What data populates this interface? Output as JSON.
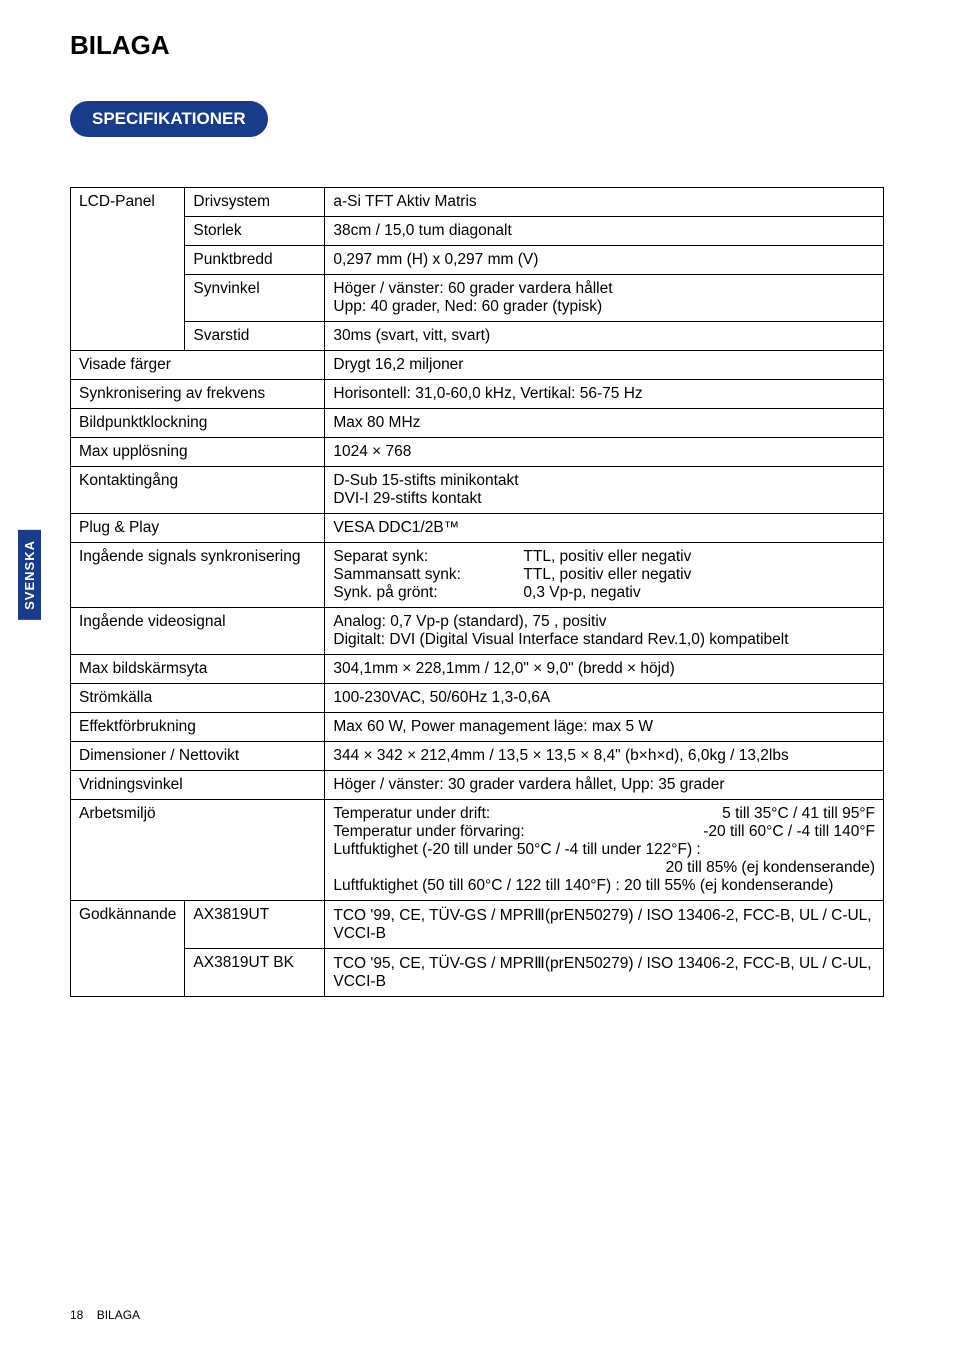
{
  "title": "BILAGA",
  "section": "SPECIFIKATIONER",
  "side_tab": "SVENSKA",
  "footer": {
    "page_num": "18",
    "label": "BILAGA"
  },
  "spec": {
    "lcd_panel_label": "LCD-Panel",
    "lcd_rows": [
      {
        "label": "Drivsystem",
        "value": "a-Si TFT Aktiv Matris"
      },
      {
        "label": "Storlek",
        "value": "38cm / 15,0 tum diagonalt"
      },
      {
        "label": "Punktbredd",
        "value": "0,297 mm (H) x 0,297 mm (V)"
      },
      {
        "label": "Synvinkel",
        "value": "Höger / vänster: 60 grader vardera hållet\nUpp: 40 grader, Ned: 60 grader (typisk)"
      },
      {
        "label": "Svarstid",
        "value": "30ms (svart, vitt, svart)"
      }
    ],
    "rows": [
      {
        "label": "Visade färger",
        "value": "Drygt 16,2 miljoner"
      },
      {
        "label": "Synkronisering av frekvens",
        "value": "Horisontell: 31,0-60,0 kHz, Vertikal: 56-75 Hz"
      },
      {
        "label": "Bildpunktklockning",
        "value": "Max 80 MHz"
      },
      {
        "label": "Max upplösning",
        "value": "1024 × 768"
      },
      {
        "label": "Kontaktingång",
        "value": "D-Sub 15-stifts minikontakt\nDVI-I 29-stifts kontakt"
      },
      {
        "label": "Plug & Play",
        "value": "VESA DDC1/2B™"
      }
    ],
    "sync_sig": {
      "label": "Ingående signals synkronisering",
      "l1_label": "Separat synk:",
      "l1_value": "TTL, positiv eller negativ",
      "l2_label": "Sammansatt synk:",
      "l2_value": "TTL, positiv eller negativ",
      "l3_label": "Synk. på grönt:",
      "l3_value": "0,3 Vp-p, negativ"
    },
    "video_sig": {
      "label": "Ingående videosignal",
      "value": "Analog: 0,7 Vp-p (standard), 75   , positiv\nDigitalt:  DVI (Digital Visual Interface standard Rev.1,0) kompatibelt"
    },
    "rows2": [
      {
        "label": "Max bildskärmsyta",
        "value": "304,1mm × 228,1mm / 12,0\" × 9,0\" (bredd × höjd)"
      },
      {
        "label": "Strömkälla",
        "value": "100-230VAC, 50/60Hz 1,3-0,6A"
      },
      {
        "label": "Effektförbrukning",
        "value": "Max 60 W, Power management läge: max 5 W"
      },
      {
        "label": "Dimensioner / Nettovikt",
        "value": "344 × 342 × 212,4mm / 13,5 × 13,5 × 8,4\" (b×h×d), 6,0kg / 13,2lbs"
      },
      {
        "label": "Vridningsvinkel",
        "value": "Höger / vänster: 30 grader vardera hållet, Upp: 35 grader"
      }
    ],
    "env": {
      "label": "Arbetsmiljö",
      "l1_label": "Temperatur under drift:",
      "l1_value": "5 till 35°C / 41 till 95°F",
      "l2_label": "Temperatur under förvaring:",
      "l2_value": "-20 till 60°C / -4 till 140°F",
      "l3": "Luftfuktighet (-20 till under 50°C / -4 till under 122°F) :",
      "l3_value": "20 till 85% (ej kondenserande)",
      "l4": "Luftfuktighet (50 till 60°C / 122 till 140°F) :  20 till 55% (ej kondenserande)"
    },
    "approval": {
      "label": "Godkännande",
      "r1_model": "AX3819UT",
      "r1_value": "TCO '99, CE, TÜV-GS / MPRⅢ(prEN50279) / ISO 13406-2, FCC-B, UL / C-UL, VCCI-B",
      "r2_model": "AX3819UT BK",
      "r2_value": "TCO '95, CE, TÜV-GS / MPRⅢ(prEN50279) / ISO 13406-2, FCC-B, UL / C-UL, VCCI-B"
    }
  }
}
